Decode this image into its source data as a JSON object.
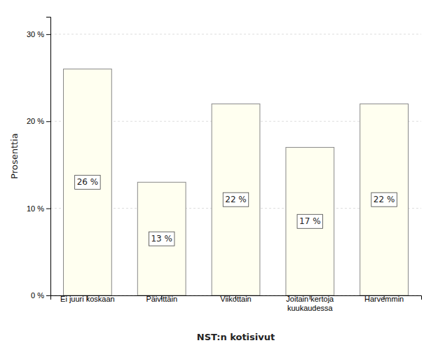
{
  "chart_data": {
    "type": "bar",
    "categories": [
      "Ei juuri koskaan",
      "Päivittäin",
      "Viikottain",
      "Joitain kertoja\nkuukaudessa",
      "Harvemmin"
    ],
    "values": [
      26,
      13,
      22,
      17,
      22
    ],
    "value_labels": [
      "26 %",
      "13 %",
      "22 %",
      "17 %",
      "22 %"
    ],
    "data_labels": true,
    "color": "#FFFFF0",
    "xlabel": "NST:n kotisivut",
    "ylabel": "Prosenttia",
    "ylim": [
      0,
      32
    ],
    "yticks": [
      {
        "value": 0,
        "label": "0 %"
      },
      {
        "value": 10,
        "label": "10 %"
      },
      {
        "value": 20,
        "label": "20 %"
      },
      {
        "value": 30,
        "label": "30 %"
      }
    ],
    "grid": true
  }
}
